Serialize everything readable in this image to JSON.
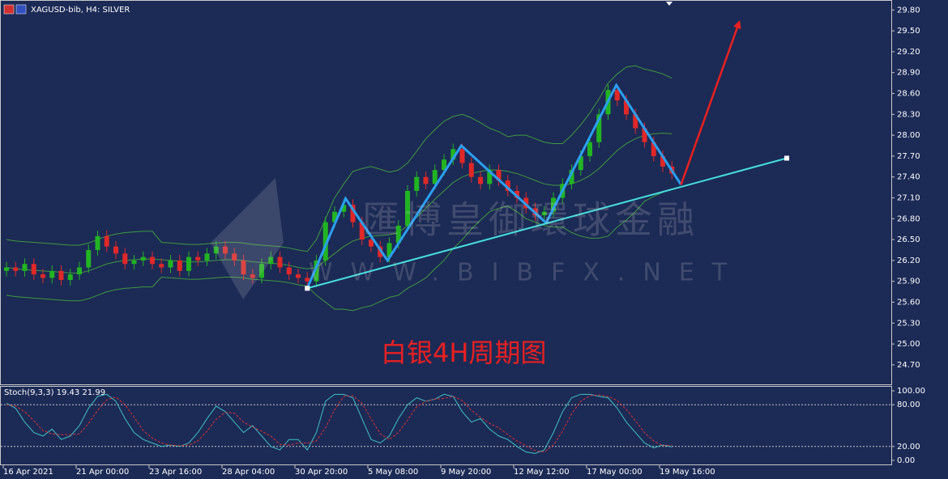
{
  "chart_data": [
    {
      "type": "candlestick",
      "title": "XAGUSD-bib, H4:  SILVER",
      "categories": [
        "16 Apr 2021",
        null,
        null,
        null,
        null,
        null,
        null,
        null,
        "21 Apr 00:00",
        null,
        null,
        null,
        null,
        null,
        null,
        null,
        "23 Apr 16:00",
        null,
        null,
        null,
        null,
        null,
        null,
        null,
        "28 Apr 04:00",
        null,
        null,
        null,
        null,
        null,
        null,
        null,
        "30 Apr 20:00",
        null,
        null,
        null,
        null,
        null,
        null,
        null,
        "5 May 08:00",
        null,
        null,
        null,
        null,
        null,
        null,
        null,
        "9 May 20:00",
        null,
        null,
        null,
        null,
        null,
        null,
        null,
        "12 May 12:00",
        null,
        null,
        null,
        null,
        null,
        null,
        null,
        "17 May 00:00",
        null,
        null,
        null,
        null,
        null,
        null,
        null,
        "19 May 16:00",
        null
      ],
      "open": [
        26.05,
        26.1,
        26.05,
        26.15,
        26.0,
        25.95,
        26.05,
        25.92,
        26.0,
        26.1,
        26.35,
        26.55,
        26.4,
        26.3,
        26.15,
        26.2,
        26.25,
        26.15,
        26.1,
        26.2,
        26.05,
        26.25,
        26.2,
        26.3,
        26.4,
        26.3,
        26.2,
        26.0,
        25.95,
        26.15,
        26.25,
        26.1,
        26.0,
        25.95,
        25.9,
        26.2,
        26.75,
        26.9,
        27.0,
        26.75,
        26.5,
        26.4,
        26.25,
        26.45,
        26.7,
        27.2,
        27.4,
        27.3,
        27.5,
        27.65,
        27.8,
        27.6,
        27.4,
        27.3,
        27.5,
        27.35,
        27.2,
        27.1,
        26.95,
        26.85,
        26.9,
        27.1,
        27.3,
        27.5,
        27.7,
        27.9,
        28.3,
        28.65,
        28.5,
        28.3,
        28.1,
        27.9,
        27.7,
        27.55
      ],
      "high": [
        26.18,
        26.18,
        26.23,
        26.23,
        26.08,
        26.13,
        26.13,
        26.08,
        26.18,
        26.43,
        26.63,
        26.63,
        26.48,
        26.38,
        26.28,
        26.33,
        26.33,
        26.23,
        26.28,
        26.28,
        26.33,
        26.33,
        26.38,
        26.48,
        26.48,
        26.38,
        26.28,
        26.08,
        26.23,
        26.33,
        26.33,
        26.18,
        26.08,
        26.03,
        26.28,
        26.83,
        26.98,
        27.08,
        27.08,
        26.83,
        26.58,
        26.48,
        26.53,
        26.78,
        27.28,
        27.48,
        27.48,
        27.58,
        27.73,
        27.88,
        27.88,
        27.68,
        27.48,
        27.58,
        27.58,
        27.43,
        27.28,
        27.18,
        27.03,
        26.98,
        27.18,
        27.38,
        27.58,
        27.78,
        27.98,
        28.38,
        28.73,
        28.73,
        28.58,
        28.38,
        28.18,
        27.98,
        27.78,
        27.63
      ],
      "low": [
        25.97,
        25.97,
        25.97,
        25.92,
        25.87,
        25.87,
        25.84,
        25.84,
        25.92,
        26.02,
        26.27,
        26.32,
        26.22,
        26.07,
        26.07,
        26.12,
        26.07,
        26.02,
        26.02,
        25.97,
        25.97,
        26.12,
        26.12,
        26.22,
        26.22,
        26.12,
        25.92,
        25.87,
        25.87,
        26.07,
        26.02,
        25.92,
        25.87,
        25.82,
        25.82,
        26.12,
        26.67,
        26.82,
        26.67,
        26.42,
        26.32,
        26.17,
        26.17,
        26.37,
        26.62,
        27.12,
        27.22,
        27.22,
        27.42,
        27.57,
        27.52,
        27.32,
        27.22,
        27.22,
        27.27,
        27.12,
        27.02,
        26.87,
        26.77,
        26.77,
        26.82,
        27.02,
        27.22,
        27.42,
        27.62,
        27.82,
        28.22,
        28.42,
        28.22,
        28.02,
        27.82,
        27.62,
        27.47,
        27.37
      ],
      "close": [
        26.1,
        26.05,
        26.15,
        26.0,
        25.95,
        26.05,
        25.92,
        26.0,
        26.1,
        26.35,
        26.55,
        26.4,
        26.3,
        26.15,
        26.2,
        26.25,
        26.15,
        26.1,
        26.2,
        26.05,
        26.25,
        26.2,
        26.3,
        26.4,
        26.3,
        26.2,
        26.0,
        25.95,
        26.15,
        26.25,
        26.1,
        26.0,
        25.95,
        25.9,
        26.2,
        26.75,
        26.9,
        27.0,
        26.75,
        26.5,
        26.4,
        26.25,
        26.45,
        26.7,
        27.2,
        27.4,
        27.3,
        27.5,
        27.65,
        27.8,
        27.6,
        27.4,
        27.3,
        27.5,
        27.35,
        27.2,
        27.1,
        26.95,
        26.85,
        26.9,
        27.1,
        27.3,
        27.5,
        27.7,
        27.9,
        28.3,
        28.65,
        28.5,
        28.3,
        28.1,
        27.9,
        27.7,
        27.55,
        27.45
      ],
      "up_color": "#22b422",
      "down_color": "#e02828",
      "bands": {
        "color": "#3f9a3f",
        "upper": [
          26.5,
          26.48,
          26.47,
          26.46,
          26.45,
          26.44,
          26.43,
          26.42,
          26.42,
          26.45,
          26.5,
          26.55,
          26.58,
          26.6,
          26.61,
          26.62,
          26.62,
          26.46,
          26.45,
          26.44,
          26.43,
          26.43,
          26.44,
          26.45,
          26.46,
          26.46,
          26.45,
          26.43,
          26.42,
          26.41,
          26.4,
          26.38,
          26.35,
          26.33,
          26.5,
          26.8,
          27.1,
          27.3,
          27.48,
          27.52,
          27.55,
          27.51,
          27.47,
          27.5,
          27.6,
          27.77,
          27.95,
          28.08,
          28.2,
          28.27,
          28.3,
          28.25,
          28.18,
          28.1,
          28.05,
          27.98,
          28.0,
          28.0,
          27.95,
          27.9,
          27.88,
          27.88,
          28.0,
          28.15,
          28.32,
          28.52,
          28.75,
          28.88,
          28.98,
          29.0,
          28.95,
          28.92,
          28.88,
          28.82
        ],
        "middle": [
          26.1,
          26.08,
          26.07,
          26.06,
          26.05,
          26.04,
          26.03,
          26.02,
          26.02,
          26.05,
          26.1,
          26.15,
          26.18,
          26.2,
          26.21,
          26.22,
          26.22,
          26.21,
          26.2,
          26.19,
          26.18,
          26.18,
          26.19,
          26.2,
          26.21,
          26.21,
          26.2,
          26.18,
          26.17,
          26.16,
          26.15,
          26.13,
          26.1,
          26.08,
          26.1,
          26.2,
          26.3,
          26.4,
          26.48,
          26.52,
          26.55,
          26.56,
          26.57,
          26.6,
          26.7,
          26.82,
          26.95,
          27.08,
          27.2,
          27.32,
          27.4,
          27.45,
          27.48,
          27.5,
          27.5,
          27.48,
          27.45,
          27.4,
          27.35,
          27.3,
          27.28,
          27.28,
          27.3,
          27.35,
          27.42,
          27.52,
          27.65,
          27.78,
          27.88,
          27.95,
          28.0,
          28.02,
          28.03,
          28.02
        ],
        "lower": [
          25.7,
          25.68,
          25.67,
          25.66,
          25.65,
          25.64,
          25.63,
          25.62,
          25.62,
          25.65,
          25.7,
          25.75,
          25.78,
          25.8,
          25.81,
          25.82,
          25.82,
          25.96,
          25.95,
          25.94,
          25.93,
          25.93,
          25.94,
          25.95,
          25.96,
          25.96,
          25.95,
          25.93,
          25.92,
          25.91,
          25.9,
          25.88,
          25.85,
          25.83,
          25.7,
          25.6,
          25.5,
          25.5,
          25.48,
          25.52,
          25.55,
          25.61,
          25.67,
          25.7,
          25.8,
          25.87,
          25.95,
          26.08,
          26.2,
          26.37,
          26.5,
          26.65,
          26.78,
          26.9,
          26.95,
          26.98,
          26.9,
          26.8,
          26.75,
          26.7,
          26.68,
          26.68,
          26.6,
          26.55,
          26.52,
          26.52,
          26.55,
          26.68,
          26.78,
          26.9,
          27.05,
          27.12,
          27.18,
          27.22
        ]
      },
      "ylim": [
        24.42,
        29.92
      ],
      "yticks": [
        {
          "value": 29.8,
          "label": "29.80"
        },
        {
          "value": 29.5,
          "label": "29.50"
        },
        {
          "value": 29.2,
          "label": "29.20"
        },
        {
          "value": 28.9,
          "label": "28.90"
        },
        {
          "value": 28.6,
          "label": "28.60"
        },
        {
          "value": 28.3,
          "label": "28.30"
        },
        {
          "value": 28.0,
          "label": "28.00"
        },
        {
          "value": 27.7,
          "label": "27.70"
        },
        {
          "value": 27.4,
          "label": "27.40"
        },
        {
          "value": 27.1,
          "label": "27.10"
        },
        {
          "value": 26.8,
          "label": "26.80"
        },
        {
          "value": 26.5,
          "label": "26.50"
        },
        {
          "value": 26.2,
          "label": "26.20"
        },
        {
          "value": 25.9,
          "label": "25.90"
        },
        {
          "value": 25.6,
          "label": "25.60"
        },
        {
          "value": 25.3,
          "label": "25.30"
        },
        {
          "value": 25.0,
          "label": "25.00"
        },
        {
          "value": 24.7,
          "label": "24.70"
        }
      ],
      "drawings": [
        {
          "kind": "polyline",
          "color": "#2b9ff2",
          "x": [
            33,
            37.2,
            41.8,
            49.9,
            59.2,
            66.9,
            74
          ],
          "y": [
            25.8,
            27.09,
            26.2,
            27.85,
            26.74,
            28.72,
            27.29
          ]
        },
        {
          "kind": "trendline",
          "color": "#46dede",
          "x": [
            33,
            85.6
          ],
          "y": [
            25.8,
            27.67
          ]
        },
        {
          "kind": "arrow",
          "color": "#e82020",
          "x": [
            74,
            80.4
          ],
          "y": [
            27.29,
            29.63
          ]
        }
      ],
      "watermark": [
        "匯博皇御環球金融",
        "WWW.BIBFX.NET"
      ],
      "caption": "白银4H周期图"
    },
    {
      "type": "line",
      "title": "Stoch(9,3,3) 19.43 21.99",
      "series": [
        {
          "color": "#3fc2c2",
          "dash": false,
          "values": [
            82,
            75,
            55,
            40,
            35,
            45,
            30,
            35,
            50,
            75,
            92,
            95,
            85,
            60,
            40,
            30,
            25,
            20,
            22,
            20,
            25,
            40,
            60,
            78,
            70,
            55,
            40,
            50,
            35,
            20,
            15,
            30,
            30,
            15,
            40,
            85,
            95,
            95,
            90,
            60,
            30,
            25,
            35,
            60,
            80,
            90,
            85,
            88,
            95,
            92,
            70,
            55,
            60,
            45,
            35,
            30,
            20,
            12,
            10,
            15,
            40,
            70,
            90,
            95,
            95,
            92,
            90,
            75,
            55,
            40,
            25,
            18,
            22,
            19.43
          ]
        },
        {
          "color": "#e03030",
          "dash": true,
          "values": [
            80,
            78,
            70,
            57,
            43,
            38,
            37,
            37,
            38,
            53,
            72,
            87,
            91,
            80,
            62,
            43,
            32,
            25,
            22,
            21,
            22,
            28,
            42,
            59,
            69,
            68,
            55,
            48,
            42,
            35,
            23,
            22,
            25,
            25,
            28,
            47,
            73,
            92,
            93,
            82,
            60,
            38,
            30,
            40,
            58,
            77,
            85,
            88,
            89,
            92,
            86,
            72,
            62,
            53,
            47,
            37,
            28,
            21,
            14,
            12,
            22,
            42,
            67,
            85,
            93,
            94,
            92,
            86,
            73,
            57,
            40,
            28,
            21,
            21.99
          ]
        }
      ],
      "ylim": [
        -7,
        107
      ],
      "yticks": [
        {
          "value": 100,
          "label": "100.00"
        },
        {
          "value": 80,
          "label": "80.00"
        },
        {
          "value": 20,
          "label": "20.00"
        },
        {
          "value": 0,
          "label": "0.00"
        }
      ],
      "levels": [
        80,
        20
      ]
    }
  ]
}
